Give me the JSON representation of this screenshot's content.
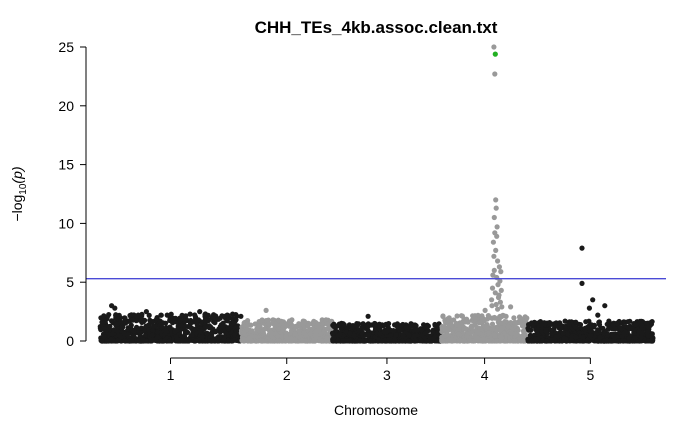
{
  "chart_data": {
    "type": "scatter",
    "title": "CHH_TEs_4kb.assoc.clean.txt",
    "xlabel": "Chromosome",
    "ylabel_prefix": "−log",
    "ylabel_sub": "10",
    "ylabel_suffix": "(p)",
    "ylim": [
      0,
      25
    ],
    "yticks": [
      "0",
      "5",
      "10",
      "15",
      "20",
      "25"
    ],
    "threshold": 5.3,
    "threshold_color": "#4a4ad6",
    "colors": {
      "dark": "#1a1a1a",
      "light": "#999999",
      "highlight": "#22b022"
    },
    "chromosomes": [
      {
        "label": "1",
        "range": [
          0,
          30.4
        ],
        "color": "dark",
        "base_max": 2.3
      },
      {
        "label": "2",
        "range": [
          30.4,
          50.1
        ],
        "color": "light",
        "base_max": 1.8
      },
      {
        "label": "3",
        "range": [
          50.1,
          73.6
        ],
        "color": "dark",
        "base_max": 1.5
      },
      {
        "label": "4",
        "range": [
          73.6,
          92.2
        ],
        "color": "light",
        "base_max": 2.2
      },
      {
        "label": "5",
        "range": [
          92.2,
          119.2
        ],
        "color": "dark",
        "base_max": 1.7
      }
    ],
    "peaks": [
      {
        "x": 84.9,
        "y": 25.0,
        "color": "light"
      },
      {
        "x": 85.2,
        "y": 24.4,
        "color": "highlight"
      },
      {
        "x": 85.1,
        "y": 22.7,
        "color": "light"
      },
      {
        "x": 85.3,
        "y": 12.0,
        "color": "light"
      },
      {
        "x": 85.4,
        "y": 11.3,
        "color": "light"
      },
      {
        "x": 85.0,
        "y": 10.5,
        "color": "light"
      },
      {
        "x": 85.6,
        "y": 9.7,
        "color": "light"
      },
      {
        "x": 85.1,
        "y": 9.2,
        "color": "light"
      },
      {
        "x": 85.5,
        "y": 8.9,
        "color": "light"
      },
      {
        "x": 84.8,
        "y": 8.4,
        "color": "light"
      },
      {
        "x": 85.3,
        "y": 7.7,
        "color": "light"
      },
      {
        "x": 84.9,
        "y": 7.2,
        "color": "light"
      },
      {
        "x": 85.7,
        "y": 6.8,
        "color": "light"
      },
      {
        "x": 86.1,
        "y": 6.3,
        "color": "light"
      },
      {
        "x": 85.0,
        "y": 6.0,
        "color": "light"
      },
      {
        "x": 86.4,
        "y": 5.9,
        "color": "light"
      },
      {
        "x": 84.7,
        "y": 5.6,
        "color": "light"
      },
      {
        "x": 85.5,
        "y": 5.4,
        "color": "light"
      },
      {
        "x": 86.2,
        "y": 5.1,
        "color": "light"
      },
      {
        "x": 85.8,
        "y": 4.8,
        "color": "light"
      },
      {
        "x": 84.6,
        "y": 4.5,
        "color": "light"
      },
      {
        "x": 86.5,
        "y": 4.3,
        "color": "light"
      },
      {
        "x": 85.2,
        "y": 4.1,
        "color": "light"
      },
      {
        "x": 86.0,
        "y": 3.9,
        "color": "light"
      },
      {
        "x": 85.9,
        "y": 3.7,
        "color": "light"
      },
      {
        "x": 84.4,
        "y": 3.5,
        "color": "light"
      },
      {
        "x": 86.3,
        "y": 3.3,
        "color": "light"
      },
      {
        "x": 85.4,
        "y": 3.1,
        "color": "light"
      },
      {
        "x": 84.5,
        "y": 3.0,
        "color": "light"
      },
      {
        "x": 86.6,
        "y": 2.9,
        "color": "light"
      },
      {
        "x": 85.7,
        "y": 2.7,
        "color": "light"
      },
      {
        "x": 88.5,
        "y": 2.9,
        "color": "light"
      },
      {
        "x": 83.0,
        "y": 2.6,
        "color": "light"
      },
      {
        "x": 103.9,
        "y": 7.9,
        "color": "dark"
      },
      {
        "x": 103.9,
        "y": 4.9,
        "color": "dark"
      },
      {
        "x": 106.2,
        "y": 3.5,
        "color": "dark"
      },
      {
        "x": 108.8,
        "y": 3.0,
        "color": "dark"
      },
      {
        "x": 105.5,
        "y": 2.8,
        "color": "dark"
      },
      {
        "x": 107.3,
        "y": 2.2,
        "color": "dark"
      },
      {
        "x": 2.5,
        "y": 3.0,
        "color": "dark"
      },
      {
        "x": 3.2,
        "y": 2.8,
        "color": "dark"
      },
      {
        "x": 10.0,
        "y": 2.5,
        "color": "dark"
      },
      {
        "x": 21.5,
        "y": 2.5,
        "color": "dark"
      },
      {
        "x": 26.8,
        "y": 2.1,
        "color": "dark"
      },
      {
        "x": 35.8,
        "y": 2.6,
        "color": "light"
      },
      {
        "x": 57.8,
        "y": 2.1,
        "color": "dark"
      }
    ]
  }
}
